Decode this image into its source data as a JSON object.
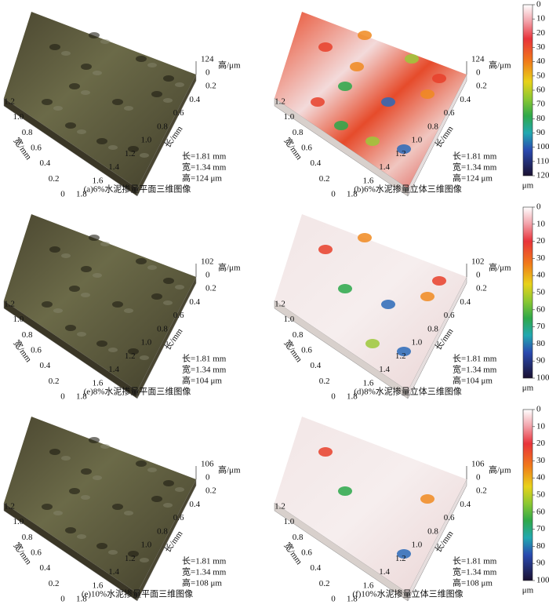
{
  "figure": {
    "panels": [
      {
        "caption": "(a)6%水泥掺量平面三维图像",
        "dims": [
          "长=1.81 mm",
          "宽=1.34 mm",
          "高=124 μm"
        ],
        "height_label": "高/μm",
        "width_label": "宽/mm",
        "length_label": "长/mm",
        "height_ticks": [
          "124",
          "0"
        ],
        "width_ticks": [
          "1.2",
          "1.0",
          "0.8",
          "0.6",
          "0.4",
          "0.2",
          "0"
        ],
        "length_ticks": [
          "0.2",
          "0.4",
          "0.6",
          "0.8",
          "1.0",
          "1.2",
          "1.4",
          "1.6",
          "1.8"
        ]
      },
      {
        "caption": "(b)6%水泥掺量立体三维图像",
        "dims": [
          "长=1.81 mm",
          "宽=1.34 mm",
          "高=124 μm"
        ],
        "height_label": "高/μm",
        "width_label": "宽/mm",
        "length_label": "长/mm",
        "height_ticks": [
          "124",
          "0"
        ],
        "width_ticks": [
          "1.2",
          "1.0",
          "0.8",
          "0.6",
          "0.4",
          "0.2",
          "0"
        ],
        "length_ticks": [
          "0.2",
          "0.4",
          "0.6",
          "0.8",
          "1.0",
          "1.2",
          "1.4",
          "1.6",
          "1.8"
        ],
        "colorbar": {
          "ticks": [
            "0",
            "10",
            "20",
            "30",
            "40",
            "50",
            "60",
            "70",
            "80",
            "90",
            "100",
            "110",
            "120"
          ],
          "unit": "μm"
        }
      },
      {
        "caption": "(e)8%水泥掺量平面三维图像",
        "dims": [
          "长=1.81 mm",
          "宽=1.34 mm",
          "高=104 μm"
        ],
        "height_label": "高/μm",
        "width_label": "宽/mm",
        "length_label": "长/mm",
        "height_ticks": [
          "102",
          "0"
        ],
        "width_ticks": [
          "1.2",
          "1.0",
          "0.8",
          "0.6",
          "0.4",
          "0.2",
          "0"
        ],
        "length_ticks": [
          "0.2",
          "0.4",
          "0.6",
          "0.8",
          "1.0",
          "1.2",
          "1.4",
          "1.6",
          "1.8"
        ]
      },
      {
        "caption": "(d)8%水泥掺量立体三维图像",
        "dims": [
          "长=1.81 mm",
          "宽=1.34 mm",
          "高=104 μm"
        ],
        "height_label": "高/μm",
        "width_label": "宽/mm",
        "length_label": "长/mm",
        "height_ticks": [
          "102",
          "0"
        ],
        "width_ticks": [
          "1.2",
          "1.0",
          "0.8",
          "0.6",
          "0.4",
          "0.2",
          "0"
        ],
        "length_ticks": [
          "0.2",
          "0.4",
          "0.6",
          "0.8",
          "1.0",
          "1.2",
          "1.4",
          "1.6",
          "1.8"
        ],
        "colorbar": {
          "ticks": [
            "0",
            "10",
            "20",
            "30",
            "40",
            "50",
            "60",
            "70",
            "80",
            "90",
            "100"
          ],
          "unit": "μm"
        }
      },
      {
        "caption": "(e)10%水泥掺量平面三维图像",
        "dims": [
          "长=1.81 mm",
          "宽=1.34 mm",
          "高=108 μm"
        ],
        "height_label": "高/μm",
        "width_label": "宽/mm",
        "length_label": "长/mm",
        "height_ticks": [
          "106",
          "0"
        ],
        "width_ticks": [
          "1.2",
          "1.0",
          "0.8",
          "0.6",
          "0.4",
          "0.2",
          "0"
        ],
        "length_ticks": [
          "0.2",
          "0.4",
          "0.6",
          "0.8",
          "1.0",
          "1.2",
          "1.4",
          "1.6",
          "1.8"
        ]
      },
      {
        "caption": "(f)10%水泥掺量立体三维图像",
        "dims": [
          "长=1.81 mm",
          "宽=1.34 mm",
          "高=108 μm"
        ],
        "height_label": "高/μm",
        "width_label": "宽/mm",
        "length_label": "长/mm",
        "height_ticks": [
          "106",
          "0"
        ],
        "width_ticks": [
          "1.2",
          "1.0",
          "0.8",
          "0.6",
          "0.4",
          "0.2",
          "0"
        ],
        "length_ticks": [
          "0.2",
          "0.4",
          "0.6",
          "0.8",
          "1.0",
          "1.2",
          "1.4",
          "1.6",
          "1.8"
        ],
        "colorbar": {
          "ticks": [
            "0",
            "10",
            "20",
            "30",
            "40",
            "50",
            "60",
            "70",
            "80",
            "90",
            "100"
          ],
          "unit": "μm"
        }
      }
    ]
  }
}
